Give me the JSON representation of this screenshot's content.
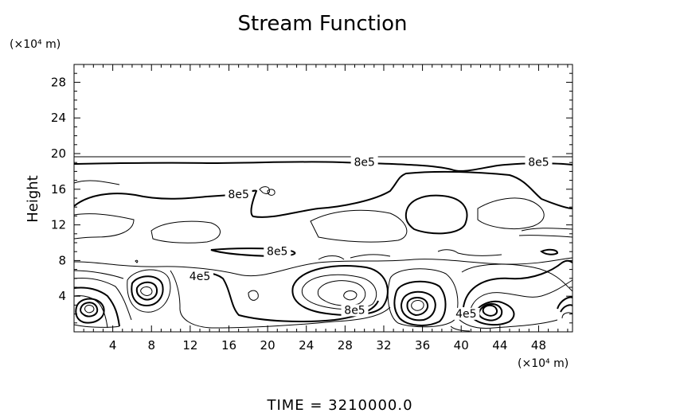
{
  "chart_data": {
    "type": "contour",
    "title": "Stream Function",
    "ylabel": "Height",
    "xunit": "(×10⁴ m)",
    "yunit": "(×10⁴ m)",
    "xlim": [
      0,
      51.5
    ],
    "ylim": [
      0,
      30
    ],
    "xticks": [
      4,
      8,
      12,
      16,
      20,
      24,
      28,
      32,
      36,
      40,
      44,
      48
    ],
    "yticks": [
      4,
      8,
      12,
      16,
      20,
      24,
      28
    ],
    "contour_labels": [
      {
        "text": "8e5",
        "x": 30,
        "y": 18.8
      },
      {
        "text": "8e5",
        "x": 48,
        "y": 18.8
      },
      {
        "text": "8e5",
        "x": 17,
        "y": 15.2
      },
      {
        "text": "8e5",
        "x": 21,
        "y": 8.8
      },
      {
        "text": "4e5",
        "x": 13,
        "y": 6.0
      },
      {
        "text": "8e5",
        "x": 29,
        "y": 2.2
      },
      {
        "text": "4e5",
        "x": 40.5,
        "y": 1.8
      }
    ],
    "footer": "TIME = 3210000.0"
  }
}
